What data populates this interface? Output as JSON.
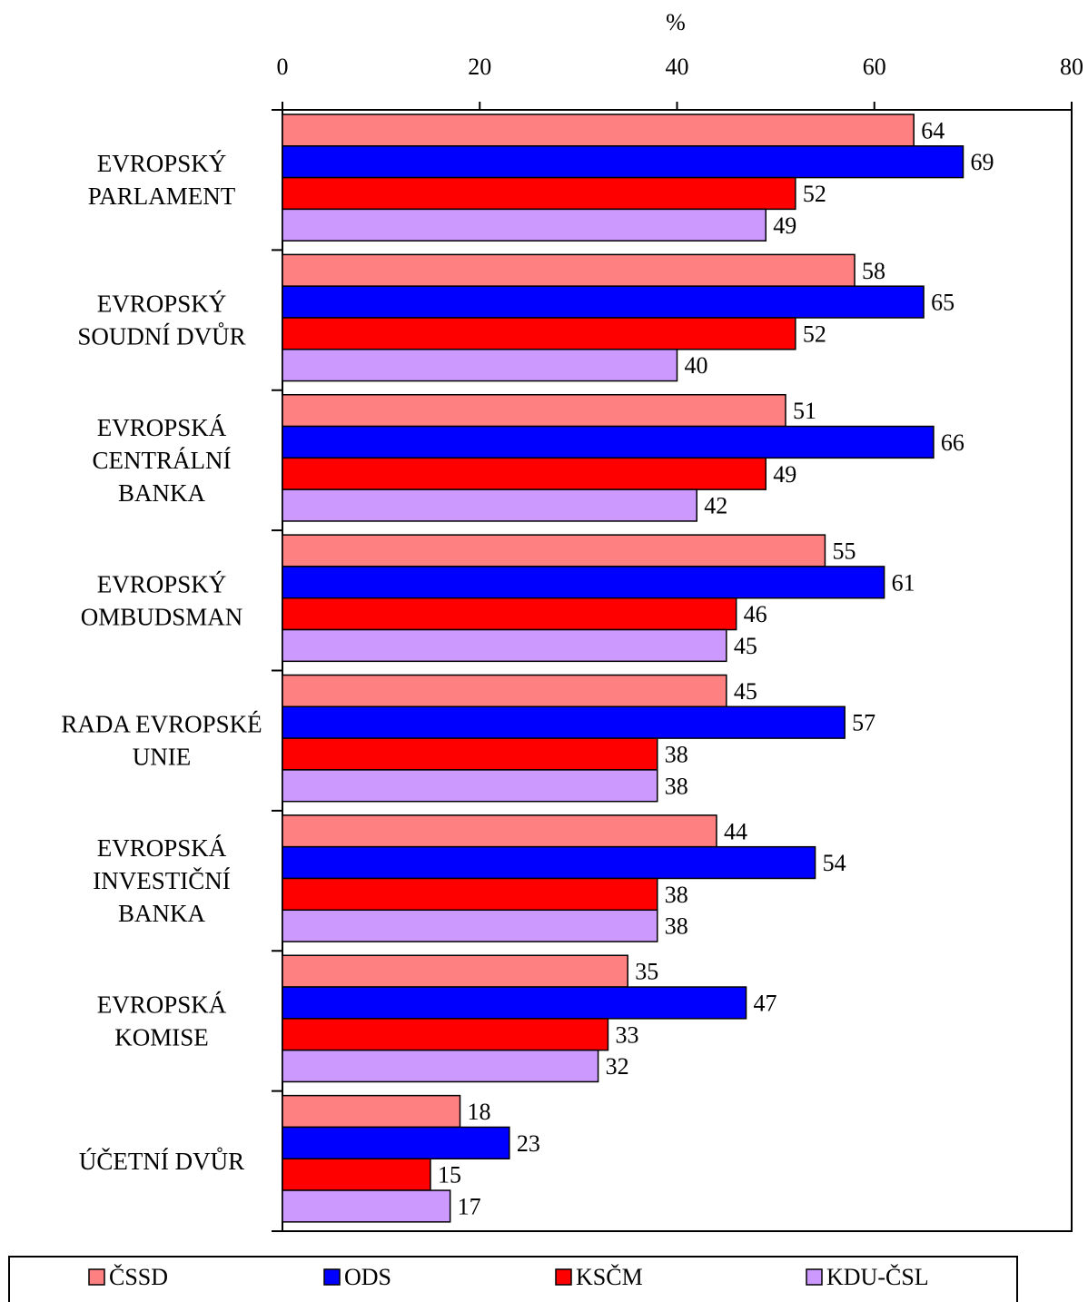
{
  "chart_data": {
    "type": "bar",
    "orientation": "horizontal",
    "xlabel": "%",
    "xlim": [
      0,
      80
    ],
    "xticks": [
      0,
      20,
      40,
      60,
      80
    ],
    "grid": false,
    "legend_position": "bottom",
    "categories": [
      [
        "EVROPSKÝ",
        "PARLAMENT"
      ],
      [
        "EVROPSKÝ",
        "SOUDNÍ DVŮR"
      ],
      [
        "EVROPSKÁ",
        "CENTRÁLNÍ",
        "BANKA"
      ],
      [
        "EVROPSKÝ",
        "OMBUDSMAN"
      ],
      [
        "RADA EVROPSKÉ",
        "UNIE"
      ],
      [
        "EVROPSKÁ",
        "INVESTIČNÍ",
        "BANKA"
      ],
      [
        "EVROPSKÁ",
        "KOMISE"
      ],
      [
        "ÚČETNÍ DVŮR"
      ]
    ],
    "series": [
      {
        "name": "ČSSD",
        "color": "#ff8080",
        "values": [
          64,
          58,
          51,
          55,
          45,
          44,
          35,
          18
        ]
      },
      {
        "name": "ODS",
        "color": "#0000ff",
        "values": [
          69,
          65,
          66,
          61,
          57,
          54,
          47,
          23
        ]
      },
      {
        "name": "KSČM",
        "color": "#ff0000",
        "values": [
          52,
          52,
          49,
          46,
          38,
          38,
          33,
          15
        ]
      },
      {
        "name": "KDU-ČSL",
        "color": "#cc99ff",
        "values": [
          49,
          40,
          42,
          45,
          38,
          38,
          32,
          17
        ]
      }
    ]
  }
}
